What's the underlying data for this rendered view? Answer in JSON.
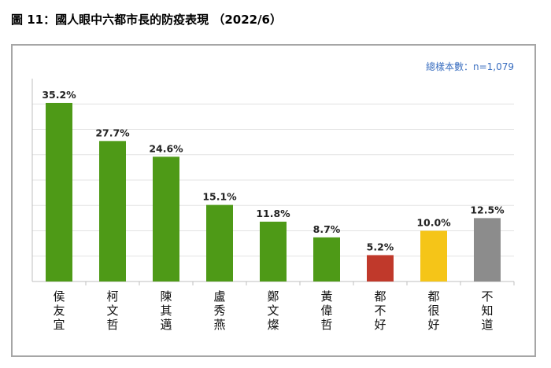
{
  "figure": {
    "title": "圖 11：國人眼中六都市長的防疫表現 （2022/6）",
    "sample_note": "總樣本數：n=1,079"
  },
  "chart_data": {
    "type": "bar",
    "title": "",
    "xlabel": "",
    "ylabel": "",
    "ylim": [
      0,
      40
    ],
    "grid": true,
    "categories": [
      "侯友宜",
      "柯文哲",
      "陳其邁",
      "盧秀燕",
      "鄭文燦",
      "黃偉哲",
      "都不好",
      "都很好",
      "不知道"
    ],
    "values": [
      35.2,
      27.7,
      24.6,
      15.1,
      11.8,
      8.7,
      5.2,
      10.0,
      12.5
    ],
    "value_labels": [
      "35.2%",
      "27.7%",
      "24.6%",
      "15.1%",
      "11.8%",
      "8.7%",
      "5.2%",
      "10.0%",
      "12.5%"
    ],
    "colors": [
      "#4e9a17",
      "#4e9a17",
      "#4e9a17",
      "#4e9a17",
      "#4e9a17",
      "#4e9a17",
      "#c0392b",
      "#f5c518",
      "#8c8c8c"
    ]
  }
}
